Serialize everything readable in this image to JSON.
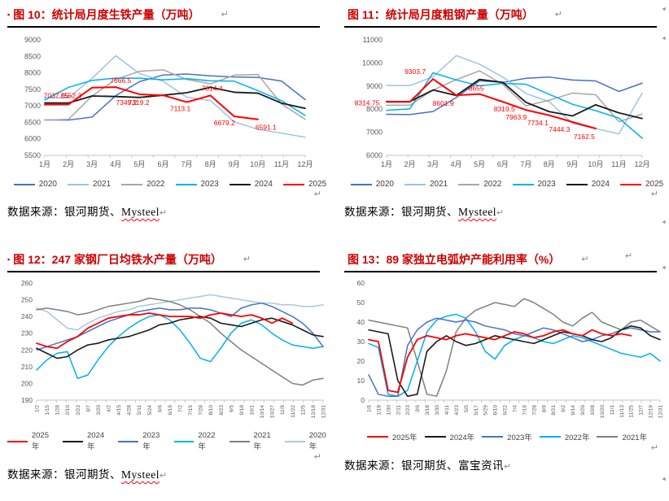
{
  "marks": {
    "pilcrow": "↵",
    "cell_mark": "◄"
  },
  "accent_colors": {
    "title_red": "#ce0000",
    "series_red": "#ff0000",
    "wavy_red": "#ff0000"
  },
  "figures": [
    {
      "bullet": "▪",
      "title": "图 10：统计局月度生铁产量（万吨）",
      "source_prefix": "数据来源：银河期货、",
      "source_name": "Mysteel"
    },
    {
      "bullet": "",
      "title": "图 11：统计局月度粗钢产量（万吨）",
      "source_prefix": "数据来源：银河期货、",
      "source_name": "Mysteel"
    },
    {
      "bullet": "▪",
      "title": "图 12：247 家钢厂日均铁水产量（万吨）",
      "source_prefix": "数据来源：银河期货、",
      "source_name": "Mysteel"
    },
    {
      "bullet": "",
      "title": "图 13：89 家独立电弧炉产能利用率（%）",
      "source_prefix": "数据来源：银河期货、",
      "source_name": "富宝资讯"
    }
  ],
  "chart_data": [
    {
      "type": "line",
      "title": "图 10：统计局月度生铁产量（万吨）",
      "categories": [
        "1月",
        "2月",
        "3月",
        "4月",
        "5月",
        "6月",
        "7月",
        "8月",
        "9月",
        "10月",
        "11月",
        "12月"
      ],
      "ylim": [
        5500,
        9000
      ],
      "ytick_step": 500,
      "grid": false,
      "legend_position": "bottom",
      "series": [
        {
          "name": "2020",
          "color": "#4472c4",
          "values": [
            6571,
            6570,
            6660,
            7310,
            7734,
            7935,
            7964,
            7909,
            7874,
            7861,
            7751,
            7189
          ]
        },
        {
          "name": "2021",
          "color": "#9dc3e6",
          "values": [
            7245,
            7240,
            7837,
            8520,
            7981,
            7744,
            7262,
            7158,
            6518,
            6288,
            6173,
            6049
          ]
        },
        {
          "name": "2022",
          "color": "#a6a6a6",
          "values": [
            6569,
            6590,
            7300,
            7800,
            8049,
            8092,
            7798,
            7668,
            7930,
            7950,
            7055,
            6590
          ]
        },
        {
          "name": "2023",
          "color": "#00b0f0",
          "values": [
            7180,
            7560,
            7770,
            7841,
            7839,
            7788,
            7822,
            7758,
            7748,
            7461,
            7157,
            6707
          ]
        },
        {
          "name": "2024",
          "color": "#1a1a1a",
          "width": 1.8,
          "values": [
            7088,
            7086,
            7300,
            7282,
            7255,
            7322,
            7398,
            7561,
            7412,
            7384,
            7081,
            6924
          ]
        },
        {
          "name": "2025",
          "color": "#ff0000",
          "width": 2,
          "values": [
            7037.65,
            7040,
            7552.3,
            7566.5,
            7349.2,
            7319.2,
            7113.1,
            7314.4,
            6679.2,
            6591.1,
            null,
            null
          ],
          "point_labels": [
            {
              "i": 0,
              "text": "7037.65",
              "dx": 14,
              "dy": -8
            },
            {
              "i": 2,
              "text": "7552.3",
              "dx": -26,
              "dy": 13
            },
            {
              "i": 3,
              "text": "7566.5",
              "dx": 6,
              "dy": -5
            },
            {
              "i": 4,
              "text": "7349.2",
              "dx": -16,
              "dy": 13
            },
            {
              "i": 5,
              "text": "7319.2",
              "dx": -30,
              "dy": 12
            },
            {
              "i": 6,
              "text": "7113.1",
              "dx": -8,
              "dy": 11
            },
            {
              "i": 7,
              "text": "7314.4",
              "dx": 2,
              "dy": -6
            },
            {
              "i": 8,
              "text": "6679.2",
              "dx": -12,
              "dy": 11
            },
            {
              "i": 9,
              "text": "6591.1",
              "dx": 10,
              "dy": 13
            }
          ]
        }
      ]
    },
    {
      "type": "line",
      "title": "图 11：统计局月度粗钢产量（万吨）",
      "categories": [
        "1月",
        "2月",
        "3月",
        "4月",
        "5月",
        "6月",
        "7月",
        "8月",
        "9月",
        "10月",
        "11月",
        "12月"
      ],
      "ylim": [
        6000,
        11000
      ],
      "ytick_step": 1000,
      "grid": false,
      "legend_position": "bottom",
      "series": [
        {
          "name": "2020",
          "color": "#4472c4",
          "values": [
            7780,
            7765,
            7898,
            8503,
            9227,
            9158,
            9336,
            9387,
            9261,
            9220,
            8766,
            9125
          ]
        },
        {
          "name": "2021",
          "color": "#9dc3e6",
          "values": [
            9024,
            9020,
            9402,
            10320,
            9945,
            9388,
            8679,
            8324,
            7375,
            7158,
            6931,
            8694
          ]
        },
        {
          "name": "2022",
          "color": "#a6a6a6",
          "values": [
            8170,
            8168,
            8830,
            9278,
            9661,
            9073,
            8143,
            8387,
            8695,
            8624,
            7454,
            7789
          ]
        },
        {
          "name": "2023",
          "color": "#00b0f0",
          "values": [
            7950,
            8010,
            9573,
            9264,
            9012,
            9111,
            9080,
            8641,
            8211,
            7933,
            7610,
            6744
          ]
        },
        {
          "name": "2024",
          "color": "#1a1a1a",
          "width": 1.8,
          "values": [
            8330,
            8325,
            8828,
            8594,
            9286,
            9161,
            8294,
            7892,
            7707,
            8188,
            7840,
            7595
          ]
        },
        {
          "name": "2025",
          "color": "#ff0000",
          "width": 2,
          "values": [
            8314.75,
            8315,
            9303.7,
            8601.9,
            8655,
            8319.5,
            7963.9,
            7734.1,
            7444.3,
            7162.5,
            null,
            null
          ],
          "point_labels": [
            {
              "i": 0,
              "text": "8314.75",
              "dx": -24,
              "dy": 4
            },
            {
              "i": 2,
              "text": "9303.7",
              "dx": -22,
              "dy": -6
            },
            {
              "i": 3,
              "text": "8601.9",
              "dx": -16,
              "dy": 13
            },
            {
              "i": 4,
              "text": "8655",
              "dx": -4,
              "dy": -4
            },
            {
              "i": 5,
              "text": "8319.5",
              "dx": 2,
              "dy": 12
            },
            {
              "i": 6,
              "text": "7963.9",
              "dx": -12,
              "dy": 12
            },
            {
              "i": 7,
              "text": "7734.1",
              "dx": -14,
              "dy": 12
            },
            {
              "i": 8,
              "text": "7444.3",
              "dx": -16,
              "dy": 12
            },
            {
              "i": 9,
              "text": "7162.5",
              "dx": -14,
              "dy": 13
            }
          ]
        }
      ]
    },
    {
      "type": "line",
      "title": "图 12：247 家钢厂日均铁水产量（万吨）",
      "categories": [
        "1/2",
        "1/15",
        "1/28",
        "2/10",
        "2/23",
        "3/7",
        "3/20",
        "4/2",
        "4/15",
        "4/28",
        "5/11",
        "5/24",
        "6/6",
        "6/19",
        "7/2",
        "7/15",
        "7/28",
        "8/10",
        "8/23",
        "9/5",
        "9/18",
        "10/1",
        "10/14",
        "10/27",
        "11/9",
        "11/22",
        "12/5",
        "12/18",
        "12/31"
      ],
      "ylim": [
        190,
        260
      ],
      "ytick_step": 10,
      "grid": false,
      "legend_position": "bottom",
      "series": [
        {
          "name": "2025年",
          "color": "#ff0000",
          "width": 1.8,
          "values": [
            224,
            222,
            221,
            225,
            228,
            233,
            236,
            239,
            240,
            241,
            241,
            242,
            241,
            240,
            240,
            240,
            239,
            241,
            242,
            241,
            240,
            241,
            239,
            236,
            239,
            236,
            null,
            null,
            null
          ]
        },
        {
          "name": "2024年",
          "color": "#1a1a1a",
          "width": 1.6,
          "values": [
            221,
            218,
            215,
            216,
            220,
            223,
            224,
            226,
            227,
            228,
            230,
            232,
            235,
            236,
            238,
            239,
            240,
            239,
            236,
            235,
            234,
            236,
            238,
            239,
            237,
            235,
            232,
            229,
            228
          ]
        },
        {
          "name": "2023年",
          "color": "#4472c4",
          "values": [
            220,
            222,
            224,
            226,
            228,
            231,
            234,
            237,
            239,
            241,
            243,
            244,
            245,
            244,
            244,
            245,
            245,
            244,
            242,
            240,
            245,
            247,
            248,
            246,
            243,
            240,
            236,
            230,
            222
          ]
        },
        {
          "name": "2022年",
          "color": "#00b0f0",
          "values": [
            208,
            214,
            218,
            219,
            203,
            205,
            214,
            222,
            228,
            233,
            237,
            240,
            241,
            238,
            232,
            224,
            215,
            213,
            221,
            230,
            236,
            238,
            235,
            230,
            226,
            223,
            222,
            221,
            222
          ]
        },
        {
          "name": "2021年",
          "color": "#7f7f7f",
          "values": [
            244,
            245,
            244,
            243,
            241,
            242,
            244,
            246,
            247,
            248,
            249,
            251,
            250,
            249,
            247,
            244,
            240,
            236,
            230,
            225,
            220,
            216,
            212,
            208,
            204,
            200,
            199,
            202,
            203
          ]
        },
        {
          "name": "2020年",
          "color": "#a8c8dc",
          "values": [
            245,
            243,
            238,
            233,
            232,
            236,
            239,
            241,
            243,
            244,
            246,
            247,
            248,
            249,
            250,
            251,
            252,
            253,
            252,
            251,
            250,
            249,
            248,
            248,
            247,
            247,
            246,
            246,
            247
          ]
        }
      ]
    },
    {
      "type": "line",
      "title": "图 13：89 家独立电弧炉产能利用率（%）",
      "categories": [
        "1/6",
        "1/18",
        "1/30",
        "2/11",
        "2/23",
        "3/6",
        "3/18",
        "3/30",
        "4/11",
        "4/23",
        "5/5",
        "5/17",
        "5/29",
        "6/10",
        "6/22",
        "7/4",
        "7/16",
        "7/28",
        "8/9",
        "8/21",
        "9/2",
        "9/14",
        "9/26",
        "10/8",
        "10/20",
        "11/1",
        "11/13",
        "11/25",
        "12/7",
        "12/19",
        "12/31"
      ],
      "ylim": [
        0,
        60
      ],
      "ytick_step": 10,
      "grid": false,
      "legend_position": "bottom",
      "series": [
        {
          "name": "2025年",
          "color": "#ff0000",
          "width": 1.8,
          "values": [
            31,
            30,
            5,
            4,
            22,
            31,
            33,
            32,
            31,
            33,
            34,
            33,
            32,
            31,
            33,
            35,
            34,
            32,
            33,
            35,
            36,
            34,
            33,
            36,
            34,
            33,
            34,
            33,
            null,
            null,
            null
          ]
        },
        {
          "name": "2024年",
          "color": "#1a1a1a",
          "width": 1.6,
          "values": [
            36,
            35,
            34,
            10,
            2,
            3,
            25,
            30,
            33,
            30,
            28,
            29,
            31,
            33,
            32,
            31,
            30,
            29,
            31,
            33,
            35,
            34,
            33,
            31,
            30,
            32,
            36,
            38,
            37,
            33,
            31
          ]
        },
        {
          "name": "2023年",
          "color": "#4472c4",
          "values": [
            13,
            3,
            2,
            2,
            28,
            36,
            40,
            42,
            41,
            40,
            41,
            40,
            38,
            37,
            36,
            34,
            33,
            35,
            37,
            36,
            34,
            32,
            30,
            31,
            33,
            34,
            36,
            37,
            36,
            35,
            35
          ]
        },
        {
          "name": "2022年",
          "color": "#00b0f0",
          "values": [
            29,
            27,
            3,
            2,
            5,
            20,
            35,
            41,
            43,
            44,
            42,
            35,
            25,
            21,
            28,
            31,
            33,
            32,
            30,
            29,
            31,
            33,
            32,
            30,
            28,
            26,
            24,
            23,
            22,
            24,
            20
          ]
        },
        {
          "name": "2021年",
          "color": "#7f7f7f",
          "values": [
            41,
            40,
            39,
            38,
            37,
            20,
            3,
            2,
            15,
            35,
            42,
            46,
            48,
            50,
            49,
            48,
            52,
            50,
            47,
            44,
            40,
            38,
            42,
            45,
            40,
            38,
            36,
            40,
            41,
            38,
            35
          ]
        }
      ]
    }
  ]
}
